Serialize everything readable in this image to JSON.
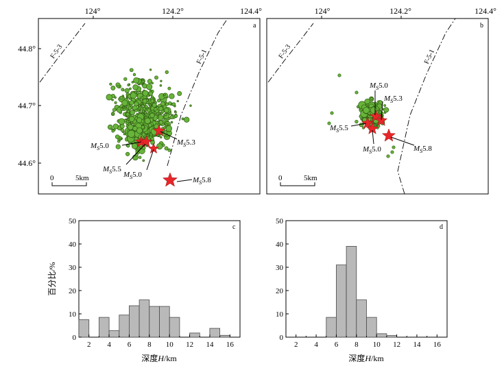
{
  "colors": {
    "quake_fill": "#67b43a",
    "quake_stroke": "#2f5a12",
    "star_fill": "#e8262a",
    "bar_fill": "#b9b9b9"
  },
  "map_a": {
    "panel_letter": "a",
    "lon_labels": [
      "124°",
      "124.2°",
      "124.4°"
    ],
    "lat_labels": [
      "44.8°",
      "44.7°",
      "44.6°"
    ],
    "faults": [
      "F-5-3",
      "F-5-1"
    ],
    "scale_zero": "0",
    "scale_label": "5km",
    "events": [
      {
        "mag_label": "M",
        "mag_sub": "S",
        "mag_value": "5.0"
      },
      {
        "mag_label": "M",
        "mag_sub": "S",
        "mag_value": "5.3"
      },
      {
        "mag_label": "M",
        "mag_sub": "S",
        "mag_value": "5.5"
      },
      {
        "mag_label": "M",
        "mag_sub": "S",
        "mag_value": "5.0"
      },
      {
        "mag_label": "M",
        "mag_sub": "S",
        "mag_value": "5.8"
      }
    ]
  },
  "map_b": {
    "panel_letter": "b",
    "lon_labels": [
      "124°",
      "124.2°",
      "124.4°"
    ],
    "faults": [
      "F-5-3",
      "F-5-1"
    ],
    "scale_zero": "0",
    "scale_label": "5km",
    "events": [
      {
        "mag_label": "M",
        "mag_sub": "S",
        "mag_value": "5.0"
      },
      {
        "mag_label": "M",
        "mag_sub": "S",
        "mag_value": "5.3"
      },
      {
        "mag_label": "M",
        "mag_sub": "S",
        "mag_value": "5.5"
      },
      {
        "mag_label": "M",
        "mag_sub": "S",
        "mag_value": "5.0"
      },
      {
        "mag_label": "M",
        "mag_sub": "S",
        "mag_value": "5.8"
      }
    ]
  },
  "chart_data": [
    {
      "type": "bar",
      "panel_letter": "c",
      "xlabel_prefix": "深度",
      "xlabel_var": "H",
      "xlabel_unit": "/km",
      "ylabel": "百分比/%",
      "xlim": [
        1,
        17
      ],
      "ylim": [
        0,
        50
      ],
      "xticks": [
        2,
        4,
        6,
        8,
        10,
        12,
        14,
        16
      ],
      "yticks": [
        0,
        10,
        20,
        30,
        40,
        50
      ],
      "bins": [
        [
          1,
          2
        ],
        [
          2,
          3
        ],
        [
          3,
          4
        ],
        [
          4,
          5
        ],
        [
          5,
          6
        ],
        [
          6,
          7
        ],
        [
          7,
          8
        ],
        [
          8,
          9
        ],
        [
          9,
          10
        ],
        [
          10,
          11
        ],
        [
          11,
          12
        ],
        [
          12,
          13
        ],
        [
          13,
          14
        ],
        [
          14,
          15
        ],
        [
          15,
          16
        ],
        [
          16,
          17
        ]
      ],
      "values": [
        7.5,
        0,
        8.5,
        2.8,
        9.5,
        13.5,
        16,
        13.2,
        13.2,
        8.5,
        0,
        1.8,
        0,
        3.8,
        0.8,
        0
      ]
    },
    {
      "type": "bar",
      "panel_letter": "d",
      "xlabel_prefix": "深度",
      "xlabel_var": "H",
      "xlabel_unit": "/km",
      "ylabel": "百分比/%",
      "xlim": [
        1,
        17
      ],
      "ylim": [
        0,
        50
      ],
      "xticks": [
        2,
        4,
        6,
        8,
        10,
        12,
        14,
        16
      ],
      "yticks": [
        0,
        10,
        20,
        30,
        40,
        50
      ],
      "bins": [
        [
          1,
          2
        ],
        [
          2,
          3
        ],
        [
          3,
          4
        ],
        [
          4,
          5
        ],
        [
          5,
          6
        ],
        [
          6,
          7
        ],
        [
          7,
          8
        ],
        [
          8,
          9
        ],
        [
          9,
          10
        ],
        [
          10,
          11
        ],
        [
          11,
          12
        ],
        [
          12,
          13
        ],
        [
          13,
          14
        ],
        [
          14,
          15
        ],
        [
          15,
          16
        ],
        [
          16,
          17
        ]
      ],
      "values": [
        0,
        0,
        0,
        0,
        8.5,
        31,
        39,
        16,
        8.5,
        1.5,
        0.7,
        0,
        0,
        0,
        0,
        0
      ]
    }
  ]
}
